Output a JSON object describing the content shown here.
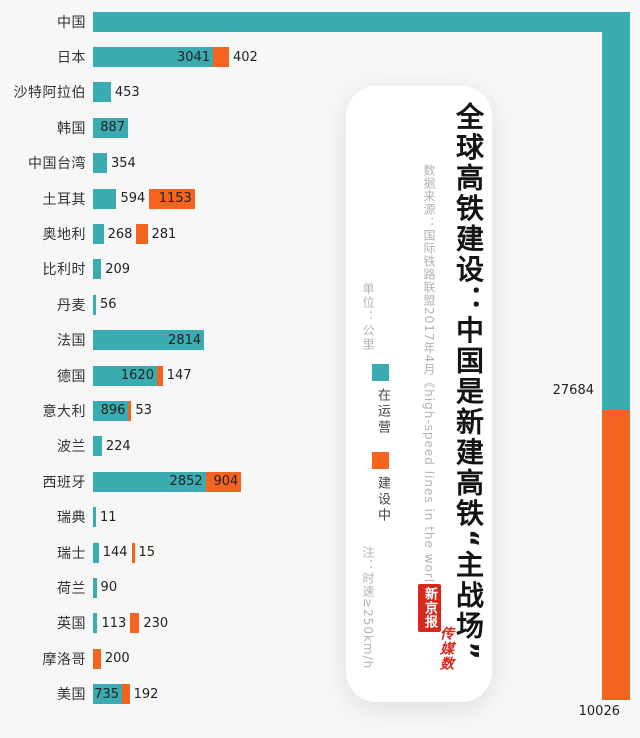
{
  "colors": {
    "operating": "#3aabb0",
    "construction": "#f4641f",
    "page_bg": "#f7f7f7",
    "card_bg": "#ffffff",
    "text": "#222222",
    "muted": "#b3b3b3",
    "logo_red": "#d7281d"
  },
  "card": {
    "title": "全球高铁建设：中国是新建高铁“主战场”",
    "source": "数据来源：国际铁路联盟2017年4月《high-speed lines in the world》",
    "unit": "单位：公里",
    "legend_operating": "在运营",
    "legend_construction": "建设中",
    "note": "注：时速≥250km/h",
    "logo_line1": "新京报",
    "logo_line2": "传媒数"
  },
  "chart_data": {
    "type": "bar",
    "orientation": "horizontal",
    "unit": "公里 (km)",
    "legend_position": "center-card",
    "grid": false,
    "series": [
      {
        "name": "在运营",
        "color": "#3aabb0"
      },
      {
        "name": "建设中",
        "color": "#f4641f"
      }
    ],
    "rows": [
      {
        "country": "中国",
        "operating": 27684,
        "construction": 10026,
        "wrap": true
      },
      {
        "country": "日本",
        "operating": 3041,
        "construction": 402
      },
      {
        "country": "沙特阿拉伯",
        "operating": 453,
        "construction": 0
      },
      {
        "country": "韩国",
        "operating": 887,
        "construction": 0
      },
      {
        "country": "中国台湾",
        "operating": 354,
        "construction": 0
      },
      {
        "country": "土耳其",
        "operating": 594,
        "construction": 1153
      },
      {
        "country": "奥地利",
        "operating": 268,
        "construction": 281
      },
      {
        "country": "比利时",
        "operating": 209,
        "construction": 0
      },
      {
        "country": "丹麦",
        "operating": 56,
        "construction": 0
      },
      {
        "country": "法国",
        "operating": 2814,
        "construction": 0
      },
      {
        "country": "德国",
        "operating": 1620,
        "construction": 147
      },
      {
        "country": "意大利",
        "operating": 896,
        "construction": 53
      },
      {
        "country": "波兰",
        "operating": 224,
        "construction": 0
      },
      {
        "country": "西班牙",
        "operating": 2852,
        "construction": 904
      },
      {
        "country": "瑞典",
        "operating": 11,
        "construction": 0
      },
      {
        "country": "瑞士",
        "operating": 144,
        "construction": 15
      },
      {
        "country": "荷兰",
        "operating": 90,
        "construction": 0
      },
      {
        "country": "英国",
        "operating": 113,
        "construction": 230
      },
      {
        "country": "摩洛哥",
        "operating": 0,
        "construction": 200
      },
      {
        "country": "美国",
        "operating": 735,
        "construction": 192
      }
    ]
  }
}
